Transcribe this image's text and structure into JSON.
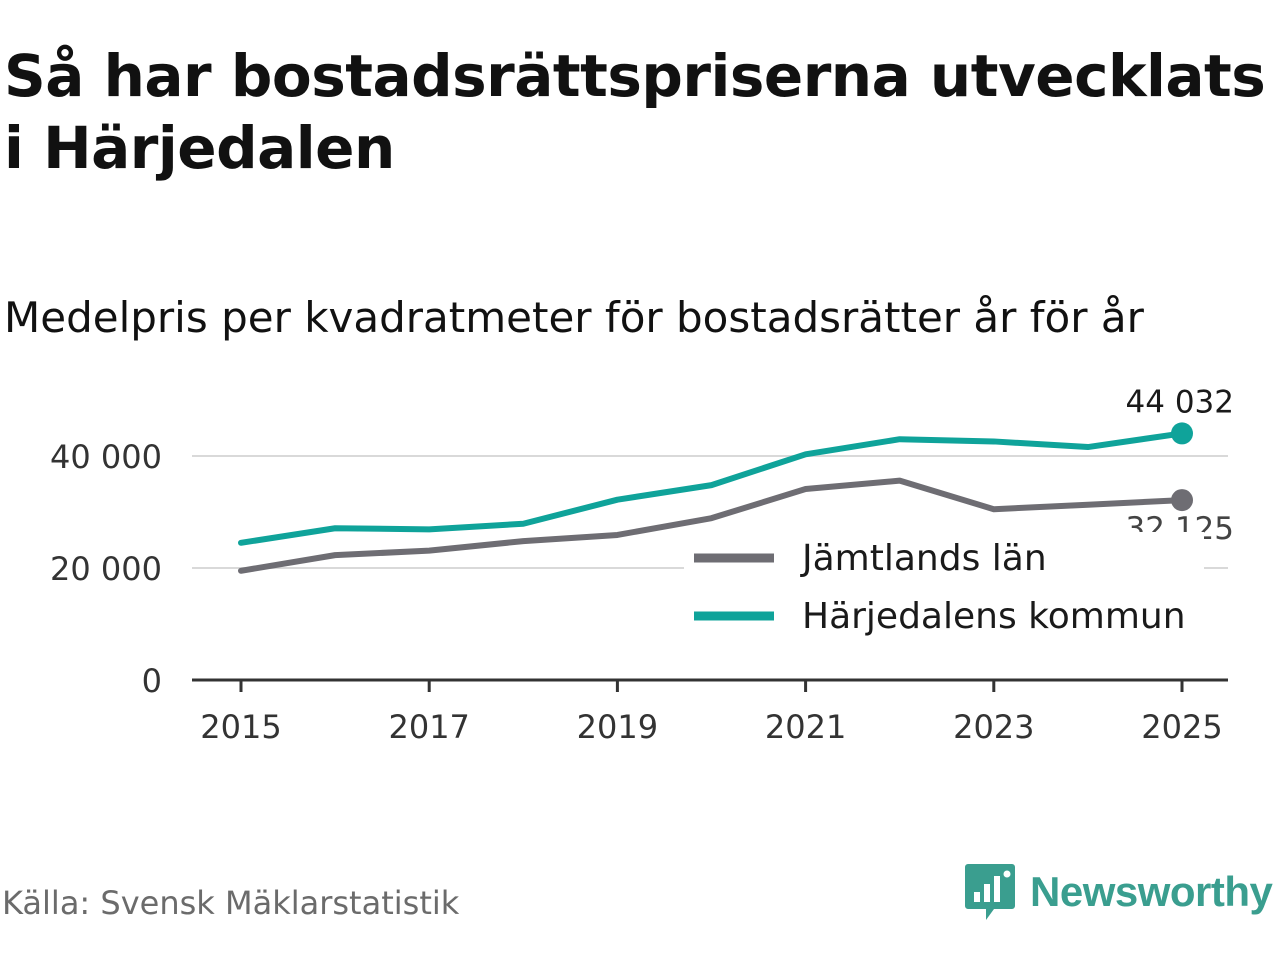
{
  "header": {
    "title": "Så har bostadsrättspriserna utvecklats i Härjedalen",
    "subtitle": "Medelpris per kvadratmeter för bostadsrätter år för år"
  },
  "footer": {
    "source": "Källa: Svensk Mäklarstatistik",
    "brand": "Newsworthy",
    "brand_icon": "bar-chart-speech-bubble-icon"
  },
  "colors": {
    "harjedalen": "#0fa39a",
    "jamtland": "#6e6d73",
    "grid": "#d9d9d9",
    "axis": "#333333"
  },
  "chart_data": {
    "type": "line",
    "title": "Så har bostadsrättspriserna utvecklats i Härjedalen",
    "subtitle": "Medelpris per kvadratmeter för bostadsrätter år för år",
    "xlabel": "",
    "ylabel": "",
    "x": [
      2015,
      2016,
      2017,
      2018,
      2019,
      2020,
      2021,
      2022,
      2023,
      2024,
      2025
    ],
    "xticks": [
      "2015",
      "2017",
      "2019",
      "2021",
      "2023",
      "2025"
    ],
    "yticks": [
      "0",
      "20 000",
      "40 000"
    ],
    "ylim": [
      0,
      44000
    ],
    "grid": true,
    "legend_position": "bottom-right",
    "series": [
      {
        "name": "Jämtlands län",
        "color": "#6e6d73",
        "values": [
          19500,
          22300,
          23100,
          24800,
          25900,
          28900,
          34100,
          35600,
          30500,
          31300,
          32125
        ],
        "end_label": "32 125"
      },
      {
        "name": "Härjedalens kommun",
        "color": "#0fa39a",
        "values": [
          24500,
          27100,
          26900,
          27900,
          32200,
          34800,
          40300,
          43000,
          42600,
          41600,
          44032
        ],
        "end_label": "44 032"
      }
    ]
  }
}
